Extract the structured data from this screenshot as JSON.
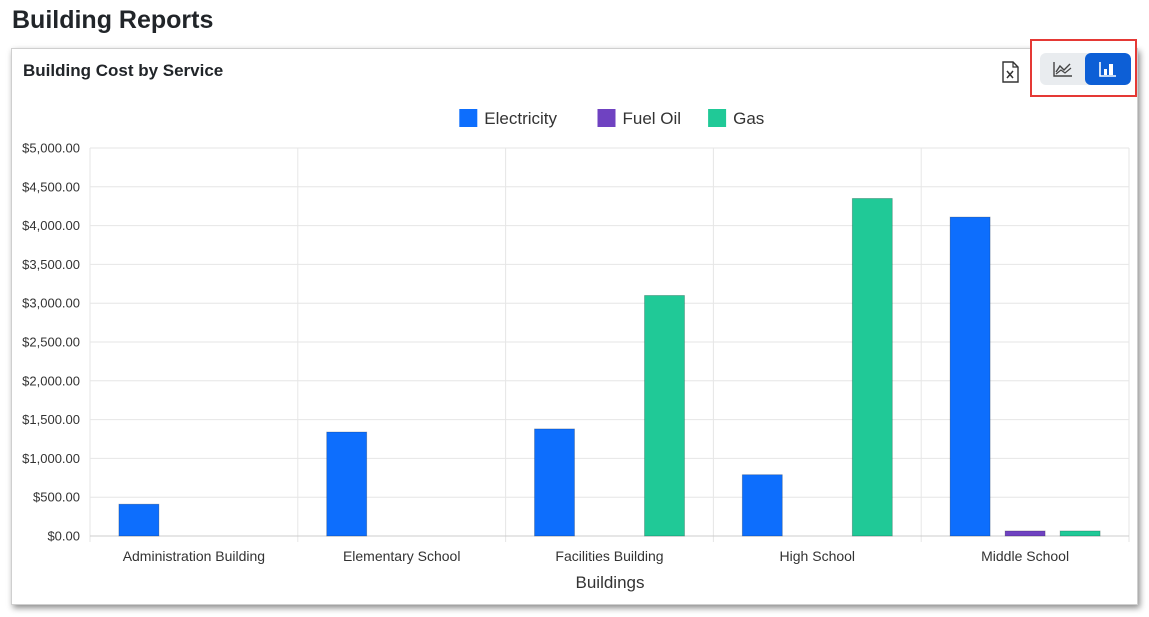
{
  "page": {
    "title": "Building Reports"
  },
  "card": {
    "title": "Building Cost by Service"
  },
  "toolbar": {
    "export_icon": "excel-export-icon",
    "line_view_icon": "line-chart-icon",
    "bar_view_icon": "bar-chart-icon",
    "active_view": "bar"
  },
  "chart_data": {
    "type": "bar",
    "title": "",
    "xlabel": "Buildings",
    "ylabel": "",
    "categories": [
      "Administration Building",
      "Elementary School",
      "Facilities Building",
      "High School",
      "Middle School"
    ],
    "series": [
      {
        "name": "Electricity",
        "color": "#0d6efd",
        "values": [
          410,
          1340,
          1380,
          790,
          4110
        ]
      },
      {
        "name": "Fuel Oil",
        "color": "#6f42c1",
        "values": [
          0,
          0,
          0,
          0,
          65
        ]
      },
      {
        "name": "Gas",
        "color": "#20c997",
        "values": [
          0,
          0,
          3100,
          4350,
          65
        ]
      }
    ],
    "ylim": [
      0,
      5000
    ],
    "yticks": [
      "$0.00",
      "$500.00",
      "$1,000.00",
      "$1,500.00",
      "$2,000.00",
      "$2,500.00",
      "$3,000.00",
      "$3,500.00",
      "$4,000.00",
      "$4,500.00",
      "$5,000.00"
    ],
    "ytick_step": 500,
    "grid": true,
    "legend": "top-center"
  }
}
